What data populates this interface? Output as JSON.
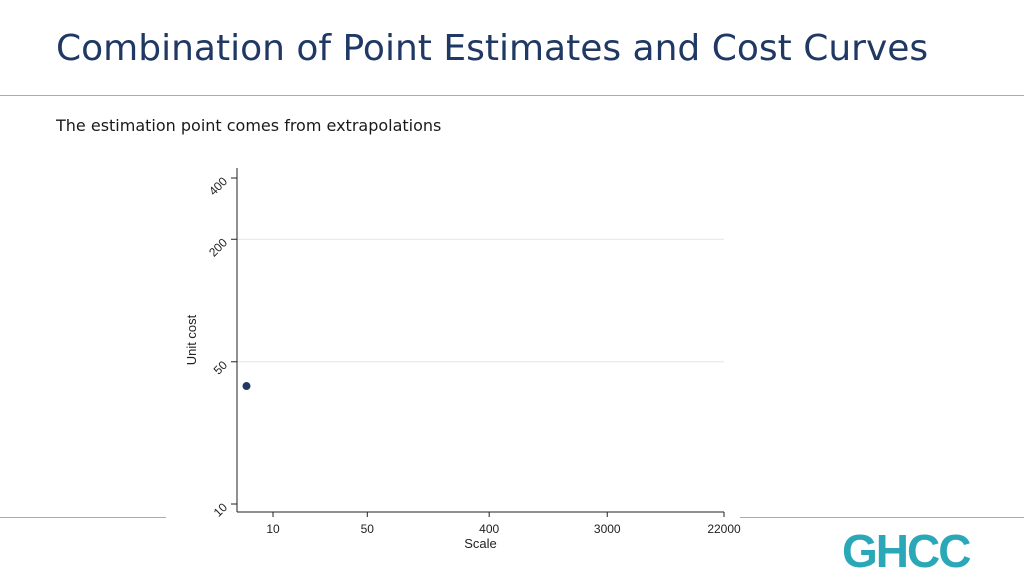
{
  "header": {
    "title": "Combination of Point Estimates and Cost Curves",
    "subtitle": "The estimation point comes from extrapolations"
  },
  "logo": {
    "text": "GHCC",
    "color": "#2aa8b8"
  },
  "colors": {
    "title": "#1f3864",
    "rule": "#e0a060",
    "point": "#1f3864",
    "grid": "#e6e6e6"
  },
  "chart_data": {
    "type": "scatter",
    "xlabel": "Scale",
    "ylabel": "Unit cost",
    "x_scale": "log",
    "y_scale": "log",
    "x_ticks": [
      10,
      50,
      400,
      3000,
      22000
    ],
    "y_ticks": [
      10,
      50,
      200,
      400
    ],
    "xlim": [
      4,
      22000
    ],
    "ylim": [
      10,
      400
    ],
    "grid": true,
    "series": [
      {
        "points": [
          {
            "x": 4.2,
            "y": 38
          }
        ]
      }
    ]
  }
}
